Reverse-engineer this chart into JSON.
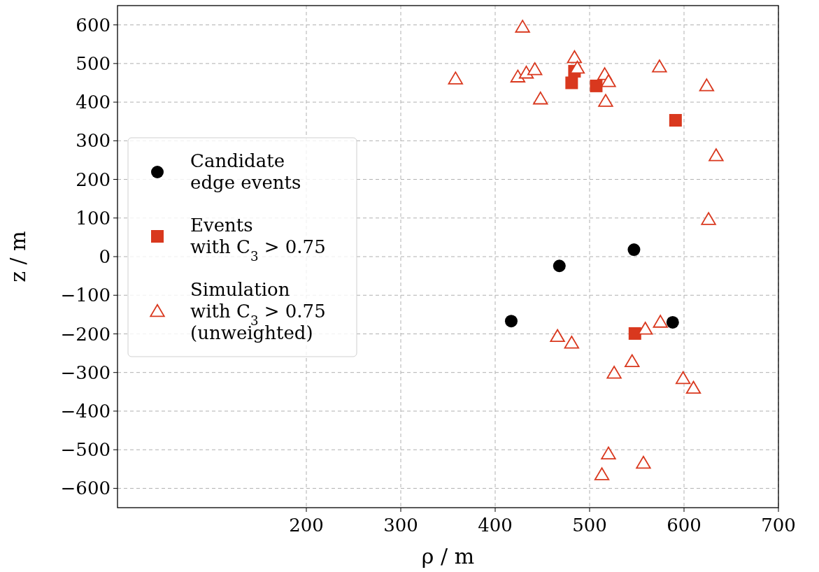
{
  "chart_data": {
    "type": "scatter",
    "xlabel": "ρ / m",
    "ylabel": "z / m",
    "xlim": [
      0,
      700
    ],
    "xticks": [
      200,
      300,
      400,
      500,
      600,
      700
    ],
    "ylim": [
      -650,
      650
    ],
    "yticks": [
      {
        "value": -600,
        "label": "−600"
      },
      {
        "value": -500,
        "label": "−500"
      },
      {
        "value": -400,
        "label": "−400"
      },
      {
        "value": -300,
        "label": "−300"
      },
      {
        "value": -200,
        "label": "−200"
      },
      {
        "value": -100,
        "label": "−100"
      },
      0,
      100,
      200,
      300,
      400,
      500,
      600
    ],
    "grid": true,
    "legend": "left",
    "series": [
      {
        "name": "Candidate\nedge events",
        "color": "#000000",
        "marker": "circle",
        "x": [
          468,
          547,
          417,
          588
        ],
        "values": [
          -24,
          18,
          -167,
          -170
        ]
      },
      {
        "name": "Events\nwith C$_{3}$ > 0.75",
        "color": "#d9381e",
        "marker": "square",
        "x": [
          481,
          484,
          507,
          591,
          548
        ],
        "values": [
          450,
          480,
          442,
          353,
          -199
        ]
      },
      {
        "name": "Simulation\nwith C$_{3}$ > 0.75\n(unweighted)",
        "color": "#d9381e",
        "marker": "triangle",
        "x": [
          429,
          358,
          424,
          433,
          442,
          448,
          484,
          487,
          516,
          520,
          517,
          574,
          624,
          634,
          626,
          466,
          481,
          559,
          575,
          545,
          526,
          599,
          610,
          520,
          557,
          513
        ],
        "values": [
          594,
          460,
          465,
          475,
          484,
          408,
          515,
          488,
          471,
          453,
          402,
          491,
          442,
          261,
          96,
          -207,
          -224,
          -188,
          -170,
          -272,
          -302,
          -316,
          -341,
          -511,
          -535,
          -565
        ]
      }
    ]
  }
}
